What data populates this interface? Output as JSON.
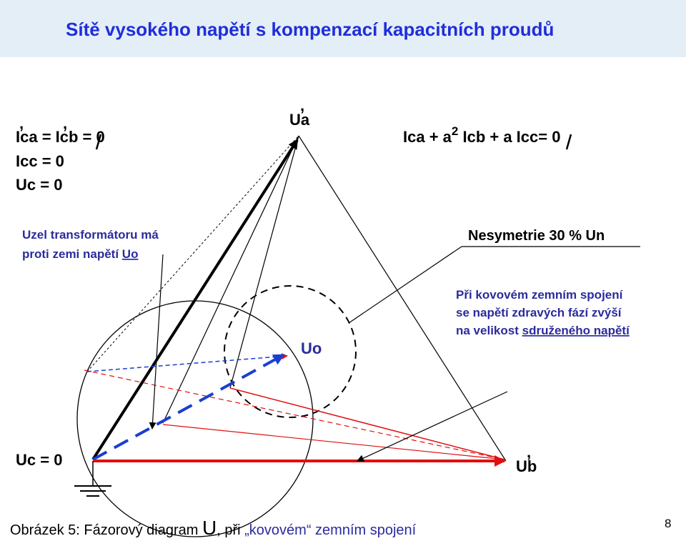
{
  "title": "Sítě vysokého napětí s kompenzací kapacitních proudů",
  "equations_left": [
    "Ica = Icb = 0",
    "Icc = 0",
    "Uc = 0"
  ],
  "equation_right": {
    "part1": "Ica + a",
    "exponent": "2",
    "part2": " Icb + a Icc= 0"
  },
  "label_ua": "Ua",
  "label_ub": "Ub",
  "label_uo": "Uo",
  "label_uc_bottom": "Uc = 0",
  "note_transformer": {
    "line1": "Uzel transformátoru má",
    "line2_text": "proti zemi napětí ",
    "line2_link": "Uo"
  },
  "nesymetrie": "Nesymetrie 30 % Un",
  "note_fault": {
    "line1": "Při kovovém zemním spojení",
    "line2": "se napětí zdravých fází zvýší",
    "line3_text": "na velikost ",
    "line3_link": "sdruženého napětí"
  },
  "caption": {
    "prefix": "Obrázek 5:  Fázorový diagram ",
    "big_u": "U",
    "middle": ", při ",
    "red_text": "„kovovém“ zemním spojení"
  },
  "page_number": "8",
  "colors": {
    "title": "#1f2edb",
    "note": "#2b2b9e",
    "phasor_red": "#e01010",
    "phasor_blue": "#1a3fd0",
    "title_bar": "#e4eef6"
  }
}
